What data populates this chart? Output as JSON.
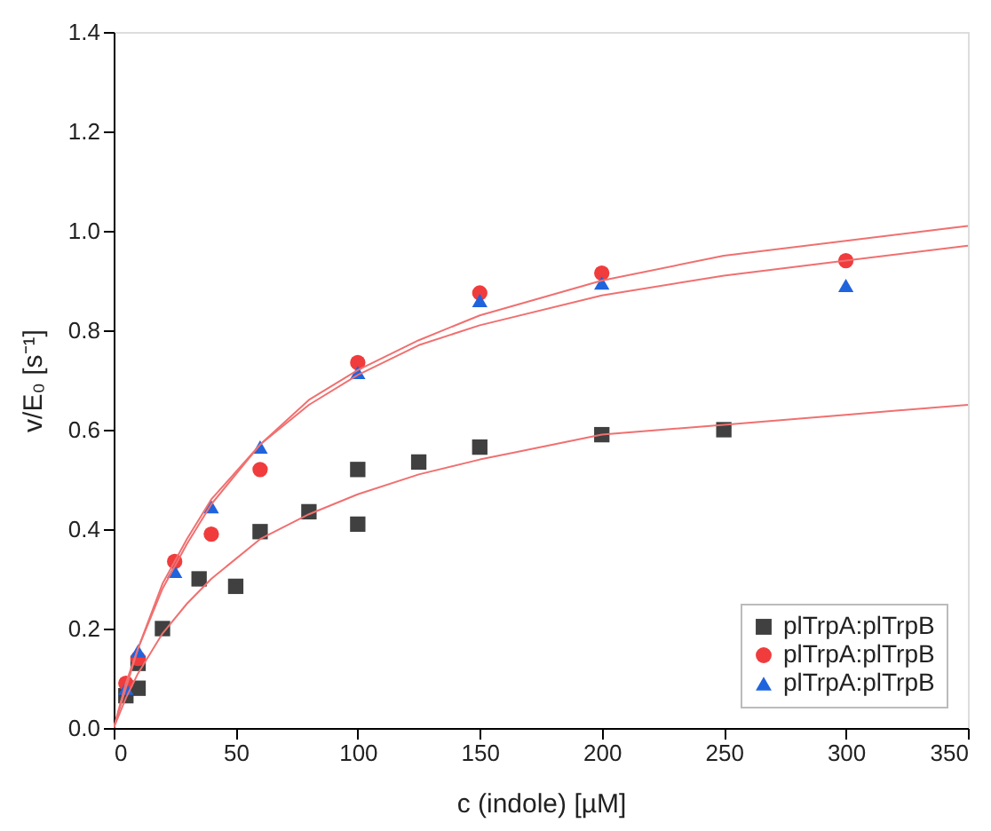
{
  "chart_data": {
    "type": "scatter",
    "xlabel": "c (indole) [µM]",
    "ylabel": "v/E₀ [s⁻¹]",
    "xlim": [
      0,
      350
    ],
    "xticks": [
      0,
      50,
      100,
      150,
      200,
      250,
      300,
      350
    ],
    "ylim": [
      0,
      1.4
    ],
    "yticks": [
      {
        "value": 0,
        "label": "0.0"
      },
      0.2,
      0.4,
      0.6,
      0.8,
      {
        "value": 1,
        "label": "1.0"
      },
      1.2,
      1.4
    ],
    "grid": false,
    "legend": "bottom right",
    "series": [
      {
        "name": "plTrpA:plTrpB",
        "type": "scatter",
        "marker": "square",
        "color": "#404040",
        "x": [
          5,
          10,
          10,
          20,
          35,
          50,
          60,
          80,
          100,
          100,
          125,
          150,
          200,
          250
        ],
        "values": [
          0.065,
          0.08,
          0.13,
          0.2,
          0.3,
          0.285,
          0.395,
          0.435,
          0.52,
          0.41,
          0.535,
          0.565,
          0.59,
          0.6
        ]
      },
      {
        "name": "plTrpA:plTrpB",
        "type": "scatter",
        "marker": "circle",
        "color": "#f03c3c",
        "x": [
          5,
          10,
          25,
          40,
          60,
          100,
          150,
          200,
          300
        ],
        "values": [
          0.09,
          0.14,
          0.335,
          0.39,
          0.52,
          0.735,
          0.875,
          0.915,
          0.94
        ]
      },
      {
        "name": "plTrpA:plTrpB",
        "type": "scatter",
        "marker": "triangle",
        "color": "#1f64dc",
        "x": [
          5,
          10,
          25,
          40,
          60,
          100,
          150,
          200,
          300
        ],
        "values": [
          0.08,
          0.155,
          0.315,
          0.445,
          0.565,
          0.715,
          0.86,
          0.895,
          0.89
        ]
      },
      {
        "type": "line",
        "color": "#f07070",
        "x": [
          0,
          5,
          10,
          20,
          30,
          40,
          60,
          80,
          100,
          125,
          150,
          200,
          250,
          300,
          350
        ],
        "values": [
          0,
          0.08,
          0.16,
          0.28,
          0.37,
          0.45,
          0.57,
          0.66,
          0.72,
          0.78,
          0.83,
          0.9,
          0.95,
          0.98,
          1.01
        ]
      },
      {
        "type": "line",
        "color": "#f07070",
        "x": [
          0,
          5,
          10,
          20,
          30,
          40,
          60,
          80,
          100,
          125,
          150,
          200,
          250,
          300,
          350
        ],
        "values": [
          0,
          0.09,
          0.16,
          0.29,
          0.38,
          0.46,
          0.57,
          0.65,
          0.71,
          0.77,
          0.81,
          0.87,
          0.91,
          0.94,
          0.97
        ]
      },
      {
        "type": "line",
        "color": "#f07070",
        "x": [
          0,
          5,
          10,
          20,
          30,
          40,
          60,
          80,
          100,
          125,
          150,
          200,
          250,
          300,
          350
        ],
        "values": [
          0,
          0.06,
          0.11,
          0.19,
          0.25,
          0.3,
          0.38,
          0.43,
          0.47,
          0.51,
          0.54,
          0.59,
          0.61,
          0.63,
          0.65
        ]
      }
    ]
  }
}
